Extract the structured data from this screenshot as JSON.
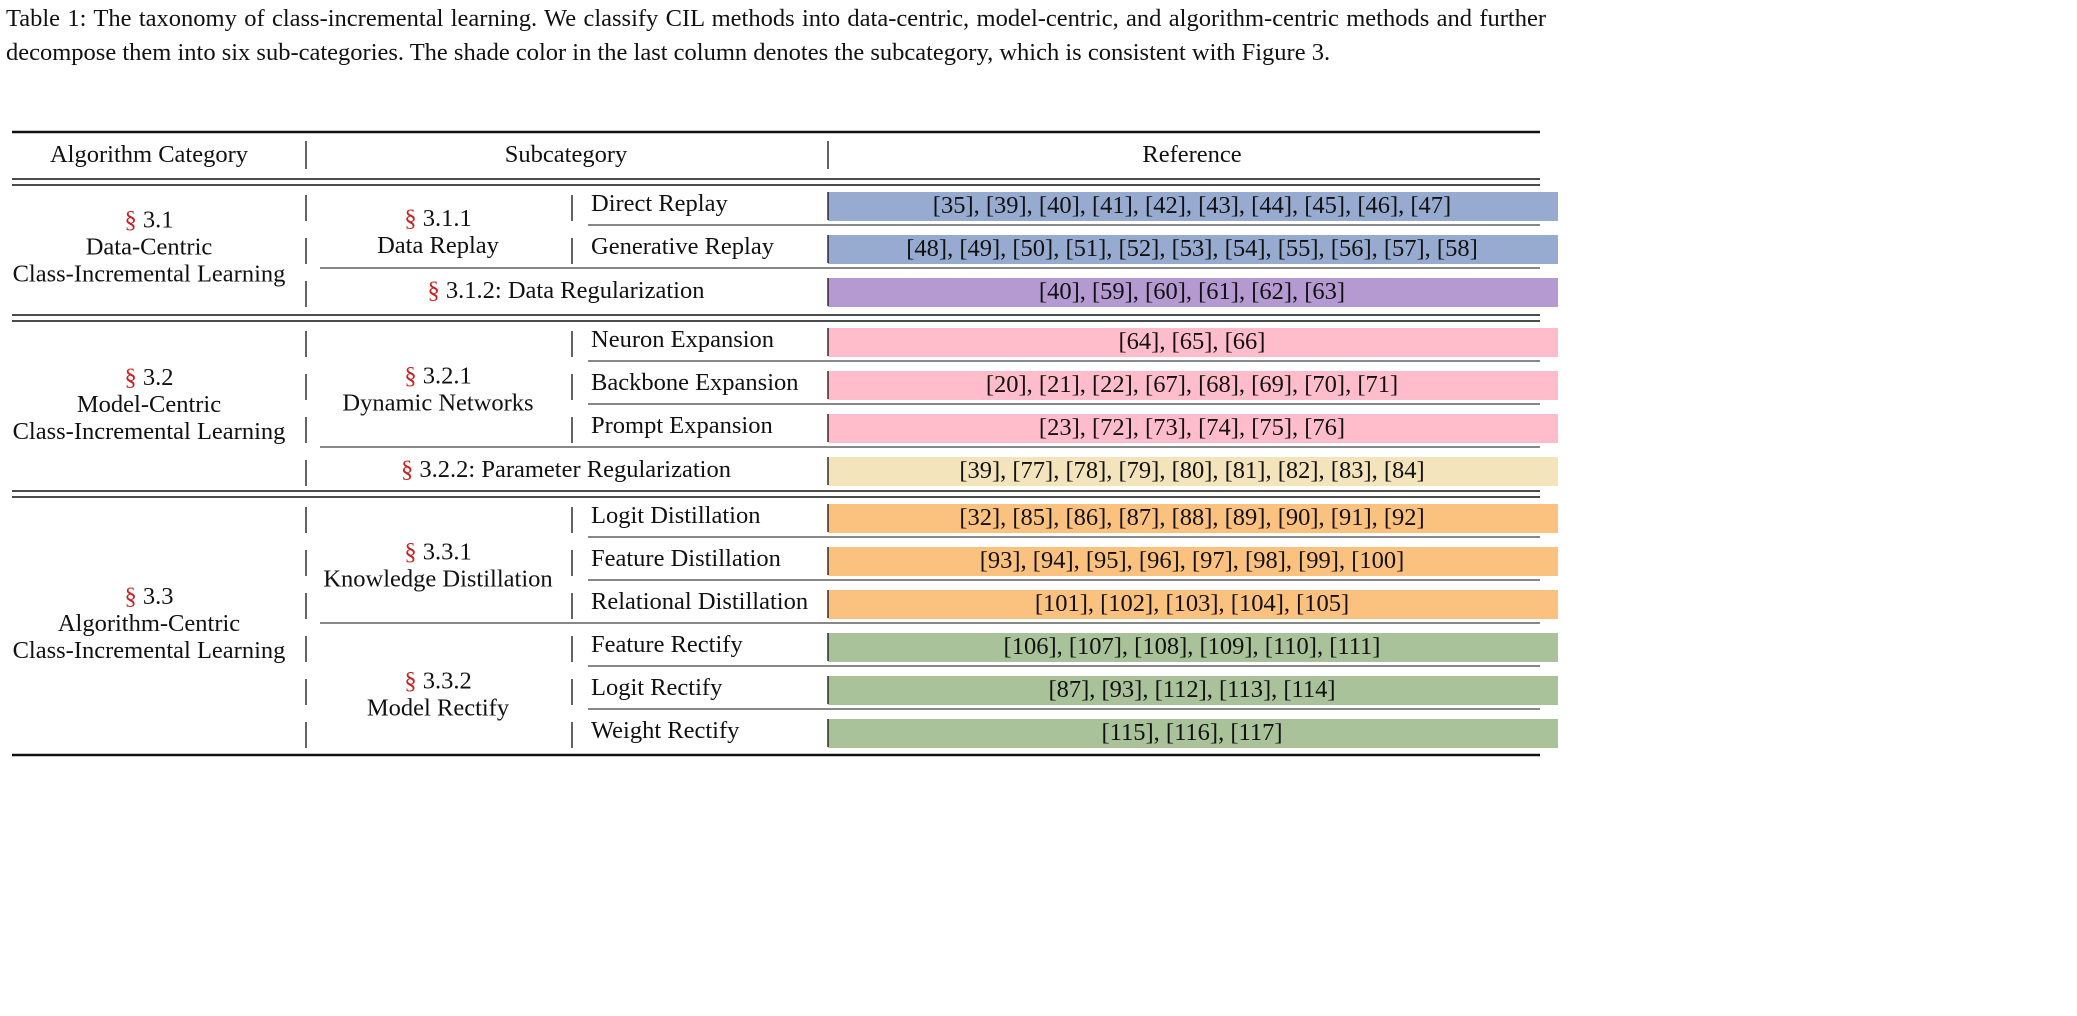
{
  "caption": "Table 1: The taxonomy of class-incremental learning. We classify CIL methods into data-centric, model-centric, and algorithm-centric methods and further decompose them into six sub-categories. The shade color in the last column denotes the subcategory, which is consistent with Figure 3.",
  "header": {
    "category": "Algorithm Category",
    "subcategory": "Subcategory",
    "reference": "Reference"
  },
  "section_symbol": "§",
  "colors": {
    "data_replay": "#97aacf",
    "data_regularization": "#b59ad2",
    "dynamic_networks": "#ffbdcb",
    "parameter_regularization": "#f3e4bb",
    "knowledge_distillation": "#fbc17f",
    "model_rectify": "#a9c29a",
    "section_mark": "#cc1f1f"
  },
  "groups": [
    {
      "number": "3.1",
      "name_line1": "Data-Centric",
      "name_line2": "Class-Incremental Learning",
      "subs": [
        {
          "number": "3.1.1",
          "name": "Data Replay",
          "color_key": "data_replay",
          "rows": [
            {
              "label": "Direct Replay",
              "refs": "[35], [39], [40], [41], [42], [43], [44], [45], [46], [47]"
            },
            {
              "label": "Generative Replay",
              "refs": "[48], [49], [50], [51], [52], [53], [54], [55], [56], [57], [58]"
            }
          ]
        },
        {
          "label": "3.1.2: Data Regularization",
          "color_key": "data_regularization",
          "refs": "[40], [59], [60], [61], [62], [63]"
        }
      ]
    },
    {
      "number": "3.2",
      "name_line1": "Model-Centric",
      "name_line2": "Class-Incremental Learning",
      "subs": [
        {
          "number": "3.2.1",
          "name": "Dynamic Networks",
          "color_key": "dynamic_networks",
          "rows": [
            {
              "label": "Neuron Expansion",
              "refs": "[64], [65], [66]"
            },
            {
              "label": "Backbone Expansion",
              "refs": "[20], [21], [22], [67], [68], [69], [70], [71]"
            },
            {
              "label": "Prompt Expansion",
              "refs": "[23], [72], [73], [74], [75], [76]"
            }
          ]
        },
        {
          "label": "3.2.2: Parameter Regularization",
          "color_key": "parameter_regularization",
          "refs": "[39], [77], [78], [79], [80], [81], [82], [83], [84]"
        }
      ]
    },
    {
      "number": "3.3",
      "name_line1": "Algorithm-Centric",
      "name_line2": "Class-Incremental Learning",
      "subs": [
        {
          "number": "3.3.1",
          "name": "Knowledge Distillation",
          "color_key": "knowledge_distillation",
          "rows": [
            {
              "label": "Logit Distillation",
              "refs": "[32], [85], [86], [87], [88], [89], [90], [91], [92]"
            },
            {
              "label": "Feature Distillation",
              "refs": "[93], [94], [95], [96], [97], [98], [99], [100]"
            },
            {
              "label": "Relational Distillation",
              "refs": "[101], [102], [103], [104], [105]"
            }
          ]
        },
        {
          "number": "3.3.2",
          "name": "Model Rectify",
          "color_key": "model_rectify",
          "rows": [
            {
              "label": "Feature Rectify",
              "refs": "[106], [107], [108], [109], [110], [111]"
            },
            {
              "label": "Logit Rectify",
              "refs": "[87], [93], [112], [113], [114]"
            },
            {
              "label": "Weight Rectify",
              "refs": "[115], [116], [117]"
            }
          ]
        }
      ]
    }
  ]
}
